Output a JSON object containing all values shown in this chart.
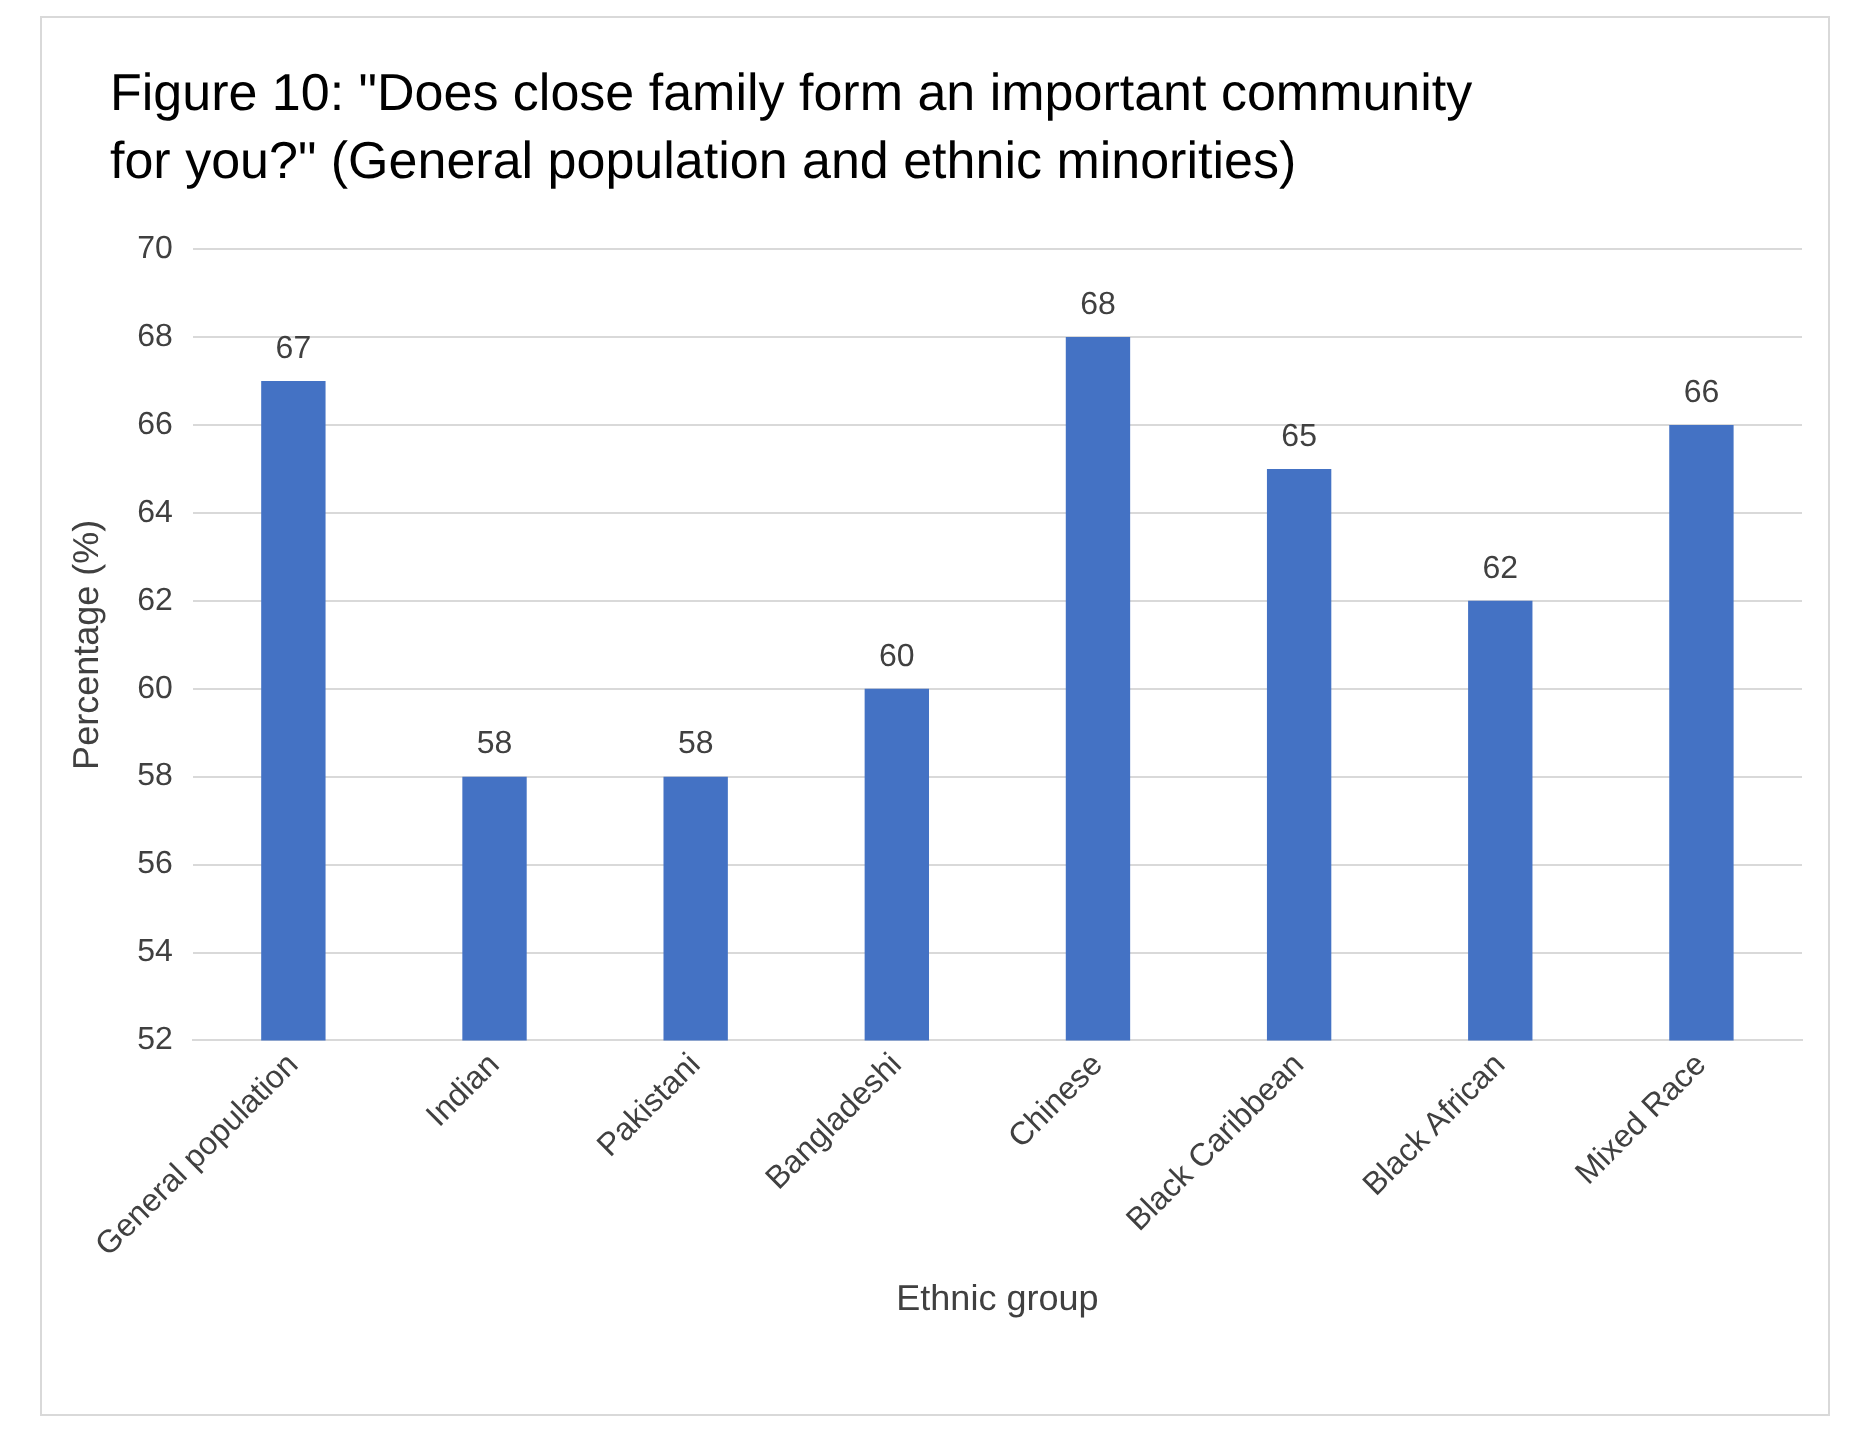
{
  "chart_data": {
    "type": "bar",
    "title": "Figure 10: \"Does close family form an important community for you?\" (General population and ethnic minorities)",
    "categories": [
      "General population",
      "Indian",
      "Pakistani",
      "Bangladeshi",
      "Chinese",
      "Black Caribbean",
      "Black African",
      "Mixed Race"
    ],
    "values": [
      67,
      58,
      58,
      60,
      68,
      65,
      62,
      66
    ],
    "color": "#4472c4",
    "xlabel": "Ethnic group",
    "ylabel": "Percentage (%)",
    "ylim": [
      52,
      70
    ],
    "yticks": [
      52,
      54,
      56,
      58,
      60,
      62,
      64,
      66,
      68,
      70
    ],
    "grid": "y",
    "data_labels": true,
    "legend": false
  }
}
